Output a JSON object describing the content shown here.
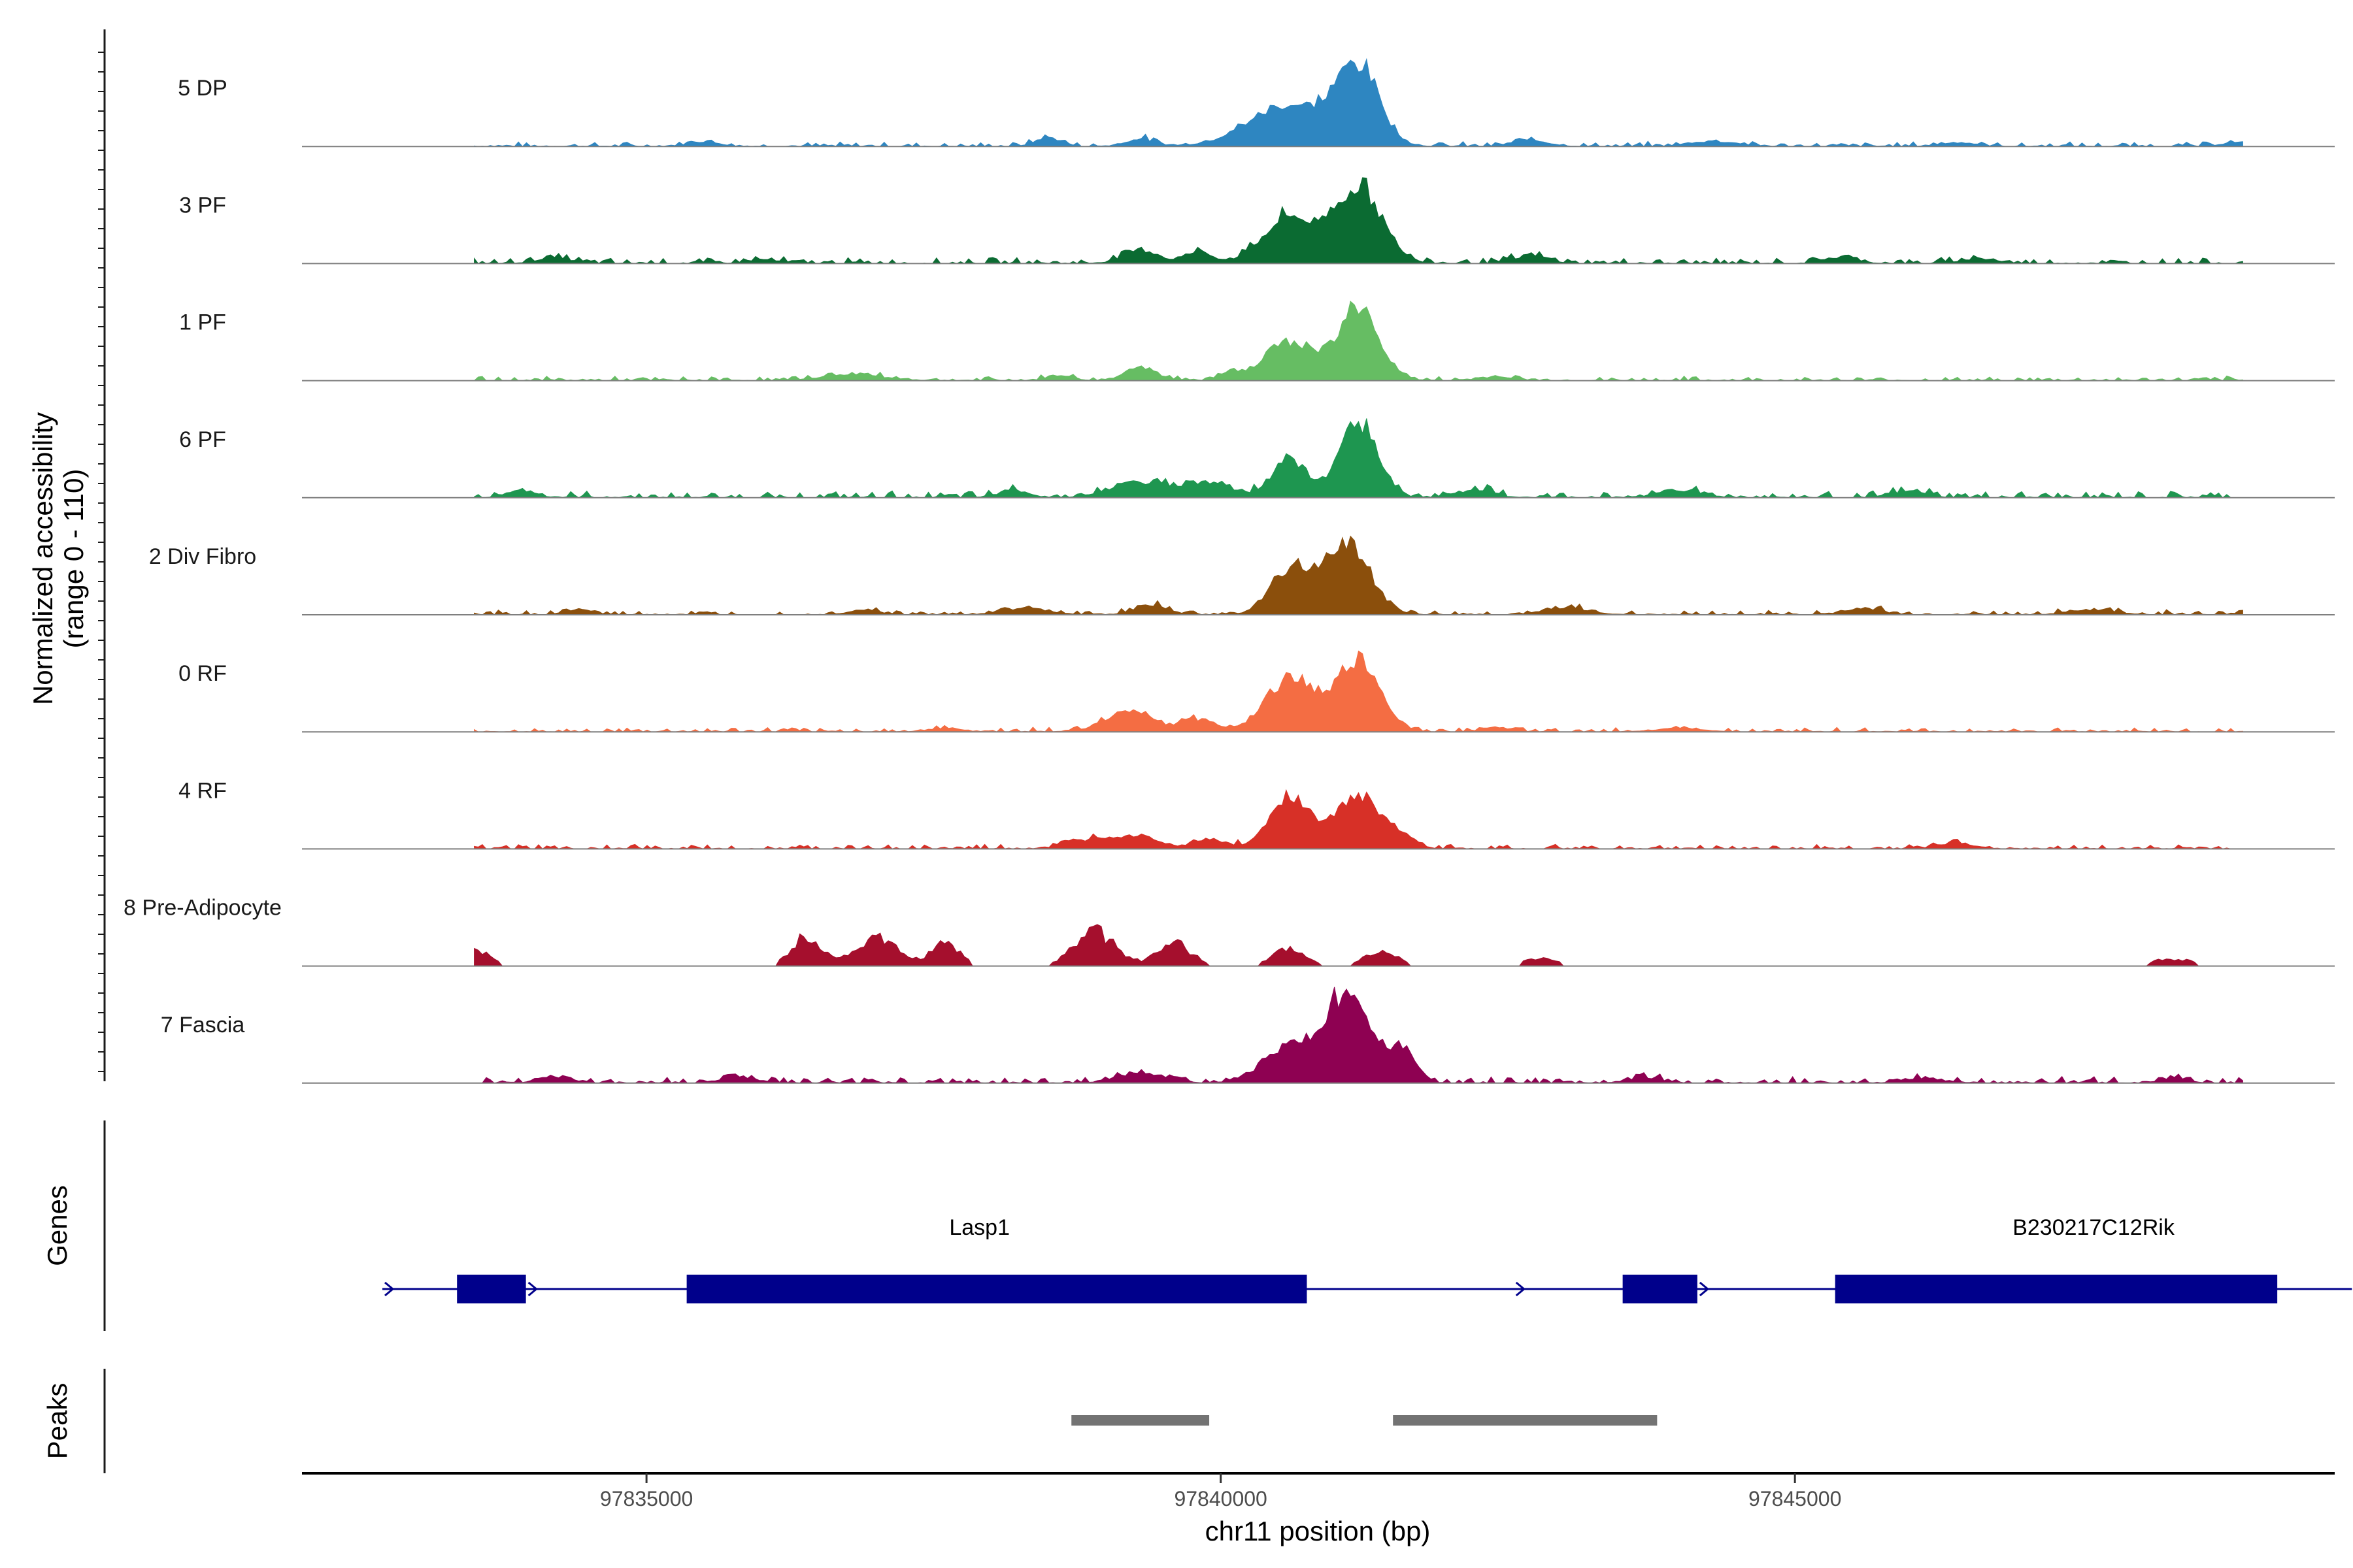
{
  "chart_data": {
    "type": "area",
    "title": "",
    "region": {
      "chrom": "chr11",
      "start": 97832000,
      "end": 97849700
    },
    "ylabel_line1": "Normalized accessibility",
    "ylabel_line2": "(range 0 - 110)",
    "ylim": [
      0,
      110
    ],
    "xlabel": "chr11 position (bp)",
    "xticks": [
      97835000,
      97840000,
      97845000
    ],
    "xtick_labels": [
      "97835000",
      "97840000",
      "97845000"
    ],
    "tracks": [
      {
        "name": "5 DP",
        "color": "#2E86C1",
        "peaks": [
          [
            97835500,
            130,
            4
          ],
          [
            97838500,
            110,
            7
          ],
          [
            97839300,
            120,
            6
          ],
          [
            97840600,
            350,
            34
          ],
          [
            97841200,
            180,
            62
          ],
          [
            97842700,
            150,
            5
          ],
          [
            97844300,
            200,
            4
          ],
          [
            97846400,
            150,
            3
          ],
          [
            97848800,
            90,
            3
          ]
        ],
        "noise": 1.8
      },
      {
        "name": "3 PF",
        "color": "#0B6B32",
        "peaks": [
          [
            97834200,
            160,
            4
          ],
          [
            97836000,
            140,
            3
          ],
          [
            97839300,
            150,
            11
          ],
          [
            97839800,
            120,
            9
          ],
          [
            97840600,
            230,
            38
          ],
          [
            97841200,
            200,
            63
          ],
          [
            97842700,
            150,
            6
          ],
          [
            97845400,
            140,
            5
          ],
          [
            97846600,
            150,
            4
          ]
        ],
        "noise": 2.2
      },
      {
        "name": "1 PF",
        "color": "#66BD63",
        "peaks": [
          [
            97836800,
            260,
            5
          ],
          [
            97838600,
            110,
            4
          ],
          [
            97839300,
            130,
            11
          ],
          [
            97840100,
            110,
            6
          ],
          [
            97840600,
            210,
            32
          ],
          [
            97841200,
            180,
            58
          ],
          [
            97842400,
            150,
            3
          ]
        ],
        "noise": 1.6
      },
      {
        "name": "6 PF",
        "color": "#1E9650",
        "peaks": [
          [
            97833900,
            120,
            6
          ],
          [
            97838200,
            120,
            6
          ],
          [
            97839300,
            250,
            12
          ],
          [
            97839900,
            200,
            12
          ],
          [
            97840600,
            150,
            32
          ],
          [
            97841200,
            160,
            63
          ],
          [
            97842200,
            160,
            6
          ],
          [
            97844000,
            180,
            6
          ],
          [
            97846000,
            150,
            5
          ]
        ],
        "noise": 2.4
      },
      {
        "name": "2 Div Fibro",
        "color": "#8B4F0C",
        "peaks": [
          [
            97834400,
            120,
            4
          ],
          [
            97836900,
            130,
            4
          ],
          [
            97838300,
            200,
            5
          ],
          [
            97839400,
            150,
            7
          ],
          [
            97840600,
            170,
            38
          ],
          [
            97841100,
            200,
            57
          ],
          [
            97843000,
            200,
            5
          ],
          [
            97845600,
            150,
            5
          ],
          [
            97847600,
            200,
            4
          ]
        ],
        "noise": 1.8
      },
      {
        "name": "0 RF",
        "color": "#F46D43",
        "peaks": [
          [
            97837600,
            140,
            3
          ],
          [
            97839200,
            200,
            18
          ],
          [
            97839800,
            150,
            10
          ],
          [
            97840600,
            210,
            43
          ],
          [
            97841200,
            190,
            58
          ],
          [
            97842400,
            130,
            3
          ],
          [
            97844000,
            200,
            3
          ]
        ],
        "noise": 1.6
      },
      {
        "name": "4 RF",
        "color": "#D73027",
        "peaks": [
          [
            97838900,
            200,
            8
          ],
          [
            97839300,
            160,
            10
          ],
          [
            97839900,
            150,
            8
          ],
          [
            97840600,
            170,
            42
          ],
          [
            97841200,
            200,
            42
          ],
          [
            97841600,
            110,
            7
          ],
          [
            97846400,
            150,
            5
          ]
        ],
        "noise": 1.7
      },
      {
        "name": "8 Pre-Adipocyte",
        "color": "#A50F2D",
        "peaks": [
          [
            97833500,
            130,
            13
          ],
          [
            97836400,
            130,
            25
          ],
          [
            97837000,
            180,
            23
          ],
          [
            97837600,
            130,
            18
          ],
          [
            97838900,
            180,
            28
          ],
          [
            97839600,
            150,
            18
          ],
          [
            97840600,
            150,
            14
          ],
          [
            97841400,
            160,
            11
          ],
          [
            97842800,
            170,
            6
          ],
          [
            97848300,
            200,
            6
          ]
        ],
        "noise": 3,
        "blocky": true
      },
      {
        "name": "7 Fascia",
        "color": "#8E0152",
        "peaks": [
          [
            97834200,
            140,
            5
          ],
          [
            97835800,
            150,
            5
          ],
          [
            97839300,
            200,
            8
          ],
          [
            97840600,
            200,
            30
          ],
          [
            97841100,
            200,
            73
          ],
          [
            97841600,
            110,
            26
          ],
          [
            97843700,
            150,
            4
          ],
          [
            97846100,
            160,
            4
          ],
          [
            97848300,
            120,
            4
          ]
        ],
        "noise": 2.3
      }
    ],
    "genes_label": "Genes",
    "genes": [
      {
        "name": "Lasp1",
        "strand": "+",
        "start": 97832700,
        "end": 97843150,
        "label_pos": 97837900,
        "exons": [
          [
            97833350,
            97833950
          ],
          [
            97835350,
            97840750
          ]
        ]
      },
      {
        "name": "B230217C12Rik",
        "strand": "+",
        "start": 97842550,
        "end": 97849850,
        "label_pos": 97847600,
        "exons": [
          [
            97843500,
            97844150
          ],
          [
            97845350,
            97849200
          ]
        ]
      }
    ],
    "peaks_label": "Peaks",
    "peak_regions": [
      [
        97838700,
        97839900
      ],
      [
        97841500,
        97843800
      ]
    ]
  }
}
